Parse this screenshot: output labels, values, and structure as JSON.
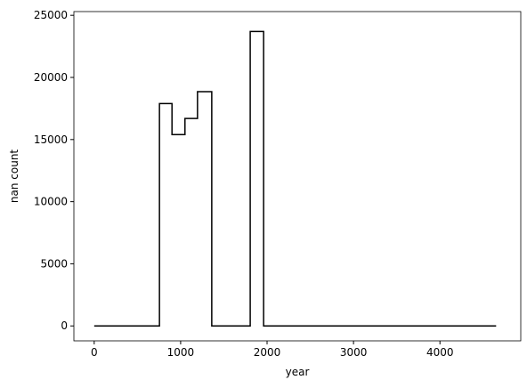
{
  "chart_data": {
    "type": "line",
    "xlabel": "year",
    "ylabel": "nan count",
    "x": [
      0,
      755,
      755,
      900,
      900,
      1050,
      1050,
      1195,
      1195,
      1360,
      1360,
      1805,
      1805,
      1960,
      1960,
      4650
    ],
    "series": [
      {
        "color": "#000000",
        "values": [
          0,
          0,
          17900,
          17900,
          15400,
          15400,
          16700,
          16700,
          18850,
          18850,
          0,
          0,
          23700,
          23700,
          0,
          0
        ]
      }
    ],
    "xlim": [
      -235,
      4935
    ],
    "ylim": [
      -1200,
      25300
    ],
    "xticks": [
      0,
      1000,
      2000,
      3000,
      4000
    ],
    "yticks": [
      0,
      5000,
      10000,
      15000,
      20000,
      25000
    ]
  }
}
